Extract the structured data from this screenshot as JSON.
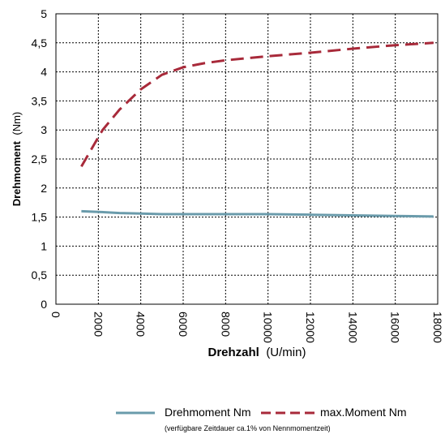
{
  "chart_data": {
    "type": "line",
    "xlabel": "Drehzahl",
    "xunit": "(U/min)",
    "ylabel": "Drehmoment",
    "yunit": "(Nm)",
    "xlim": [
      0,
      18000
    ],
    "ylim": [
      0,
      5
    ],
    "x_ticks": [
      "0",
      "2000",
      "4000",
      "6000",
      "8000",
      "10000",
      "12000",
      "14000",
      "16000",
      "18000"
    ],
    "y_ticks": [
      "0",
      "0,5",
      "1",
      "1,5",
      "2",
      "2,5",
      "3",
      "3,5",
      "4",
      "4,5",
      "5"
    ],
    "grid": true,
    "legend_position": "bottom",
    "series": [
      {
        "name": "Drehmoment Nm",
        "color": "#6a9bab",
        "style": "solid",
        "x": [
          1200,
          2000,
          3000,
          4000,
          5000,
          6000,
          8000,
          10000,
          12000,
          14000,
          16000,
          17800
        ],
        "y": [
          1.6,
          1.59,
          1.57,
          1.56,
          1.55,
          1.55,
          1.55,
          1.55,
          1.54,
          1.53,
          1.52,
          1.51
        ]
      },
      {
        "name": "max.Moment Nm",
        "color": "#a82a3a",
        "style": "dashed",
        "x": [
          1200,
          1800,
          2200,
          3000,
          4000,
          5000,
          6000,
          7000,
          8000,
          10000,
          12000,
          14000,
          16000,
          17800
        ],
        "y": [
          2.37,
          2.75,
          3.0,
          3.35,
          3.7,
          3.95,
          4.08,
          4.15,
          4.2,
          4.27,
          4.33,
          4.4,
          4.46,
          4.5
        ]
      }
    ],
    "note": "(verfügbare Zeitdauer ca.1% von Nennmomentzeit)"
  }
}
